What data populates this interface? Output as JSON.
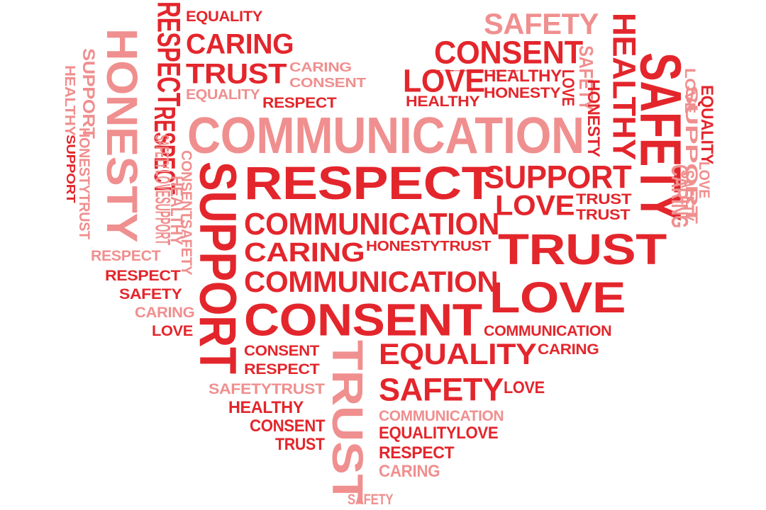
{
  "colors": {
    "dark": "#e3262c",
    "light": "#f08f8f",
    "background": "#ffffff"
  },
  "words": [
    {
      "t": "EQUALITY",
      "tone": "dark"
    },
    {
      "t": "CARING",
      "tone": "dark"
    },
    {
      "t": "TRUST",
      "tone": "dark"
    },
    {
      "t": "CARING",
      "tone": "light"
    },
    {
      "t": "CONSENT",
      "tone": "light"
    },
    {
      "t": "EQUALITY",
      "tone": "light"
    },
    {
      "t": "RESPECT",
      "tone": "dark"
    },
    {
      "t": "RESPECT",
      "tone": "dark"
    },
    {
      "t": "HONESTY",
      "tone": "light"
    },
    {
      "t": "SUPPORT",
      "tone": "light"
    },
    {
      "t": "HEALTHY",
      "tone": "light"
    },
    {
      "t": "SUPPORT",
      "tone": "dark"
    },
    {
      "t": "HONESTYTRUST",
      "tone": "light"
    },
    {
      "t": "RESPECT",
      "tone": "dark"
    },
    {
      "t": "SAFETY",
      "tone": "light"
    },
    {
      "t": "LOVESUPPORT",
      "tone": "light"
    },
    {
      "t": "HEALTHY",
      "tone": "light"
    },
    {
      "t": "CONSENTSAFETY",
      "tone": "light"
    },
    {
      "t": "COMMUNICATION",
      "tone": "light"
    },
    {
      "t": "SUPPORT",
      "tone": "dark"
    },
    {
      "t": "RESPECT",
      "tone": "light"
    },
    {
      "t": "RESPECT",
      "tone": "dark"
    },
    {
      "t": "SAFETY",
      "tone": "dark"
    },
    {
      "t": "CARING",
      "tone": "light"
    },
    {
      "t": "LOVE",
      "tone": "dark"
    },
    {
      "t": "RESPECT",
      "tone": "dark"
    },
    {
      "t": "COMMUNICATION",
      "tone": "dark"
    },
    {
      "t": "CARING",
      "tone": "dark"
    },
    {
      "t": "HONESTYTRUST",
      "tone": "dark"
    },
    {
      "t": "COMMUNICATION",
      "tone": "dark"
    },
    {
      "t": "CONSENT",
      "tone": "dark"
    },
    {
      "t": "CONSENT",
      "tone": "dark"
    },
    {
      "t": "RESPECT",
      "tone": "dark"
    },
    {
      "t": "SAFETYTRUST",
      "tone": "light"
    },
    {
      "t": "HEALTHY",
      "tone": "dark"
    },
    {
      "t": "CONSENT",
      "tone": "dark"
    },
    {
      "t": "TRUST",
      "tone": "dark"
    },
    {
      "t": "TRUST",
      "tone": "light"
    },
    {
      "t": "EQUALITY",
      "tone": "dark"
    },
    {
      "t": "CARING",
      "tone": "dark"
    },
    {
      "t": "SAFETY",
      "tone": "dark"
    },
    {
      "t": "LOVE",
      "tone": "dark"
    },
    {
      "t": "COMMUNICATION",
      "tone": "light"
    },
    {
      "t": "EQUALITYLOVE",
      "tone": "dark"
    },
    {
      "t": "RESPECT",
      "tone": "dark"
    },
    {
      "t": "CARING",
      "tone": "light"
    },
    {
      "t": "SAFETY",
      "tone": "light"
    },
    {
      "t": "SAFETY",
      "tone": "light"
    },
    {
      "t": "HEALTHY",
      "tone": "dark"
    },
    {
      "t": "CONSENT",
      "tone": "dark"
    },
    {
      "t": "LOVE",
      "tone": "dark"
    },
    {
      "t": "HEALTHY",
      "tone": "dark"
    },
    {
      "t": "HONESTY",
      "tone": "dark"
    },
    {
      "t": "LOVE",
      "tone": "dark"
    },
    {
      "t": "HEALTHY",
      "tone": "dark"
    },
    {
      "t": "SAFETY",
      "tone": "light"
    },
    {
      "t": "HONESTY",
      "tone": "dark"
    },
    {
      "t": "HEALTHY",
      "tone": "dark"
    },
    {
      "t": "SAFETY",
      "tone": "dark"
    },
    {
      "t": "LOVE",
      "tone": "light"
    },
    {
      "t": "SUPPORT",
      "tone": "light"
    },
    {
      "t": "SAFETY",
      "tone": "light"
    },
    {
      "t": "EQUALITY",
      "tone": "dark"
    },
    {
      "t": "LOVE",
      "tone": "light"
    },
    {
      "t": "CARING",
      "tone": "light"
    },
    {
      "t": "SUPPORT",
      "tone": "dark"
    },
    {
      "t": "LOVE",
      "tone": "dark"
    },
    {
      "t": "TRUST",
      "tone": "dark"
    },
    {
      "t": "TRUST",
      "tone": "dark"
    },
    {
      "t": "TRUST",
      "tone": "dark"
    },
    {
      "t": "LOVE",
      "tone": "dark"
    },
    {
      "t": "COMMUNICATION",
      "tone": "dark"
    },
    {
      "t": "CARING",
      "tone": "dark"
    },
    {
      "t": "RESPECT",
      "tone": "light"
    }
  ]
}
